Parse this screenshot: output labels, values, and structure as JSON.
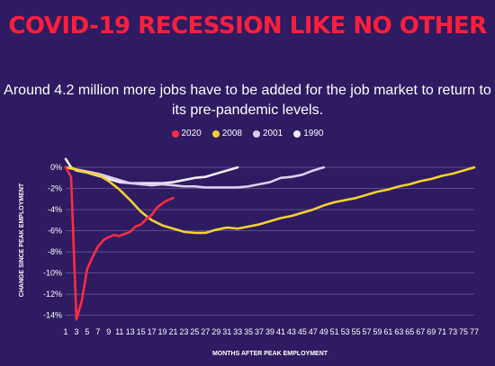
{
  "title": "COVID-19 RECESSION LIKE NO OTHER",
  "subtitle": "Around 4.2 million more jobs have to be added for the job market to return to its pre-pandemic levels.",
  "colors": {
    "background": "#2e1b61",
    "title": "#ff1f3c",
    "grid": "#6a5c99"
  },
  "chart_data": {
    "type": "line",
    "title": "COVID-19 RECESSION LIKE NO OTHER",
    "subtitle": "Around 4.2 million more jobs have to be added for the job market to return to its pre-pandemic levels.",
    "xlabel": "MONTHS AFTER PEAK EMPLOYMENT",
    "ylabel": "CHANGE SINCE PEAK EMPLOYMENT",
    "xlim": [
      1,
      77
    ],
    "ylim": [
      -14.8,
      1.2
    ],
    "x_ticks": [
      1,
      3,
      5,
      7,
      9,
      11,
      13,
      15,
      17,
      19,
      21,
      23,
      25,
      27,
      29,
      31,
      33,
      35,
      37,
      39,
      41,
      43,
      45,
      47,
      49,
      51,
      53,
      55,
      57,
      59,
      61,
      63,
      65,
      67,
      69,
      71,
      73,
      75,
      77
    ],
    "x_tick_labels": [
      "1",
      "3",
      "5",
      "7",
      "9",
      "11",
      "13",
      "15",
      "17",
      "19",
      "21",
      "23",
      "25",
      "27",
      "29",
      "31",
      "33",
      "35",
      "37",
      "39",
      "41",
      "43",
      "45",
      "47",
      "49",
      "51",
      "53",
      "55",
      "57",
      "59",
      "61",
      "63",
      "65",
      "67",
      "69",
      "71",
      "73",
      "75",
      "77"
    ],
    "y_ticks": [
      0,
      -2,
      -4,
      -6,
      -8,
      -10,
      -12,
      -14
    ],
    "y_tick_labels": [
      "0%",
      "-2%",
      "-4%",
      "-6%",
      "-8%",
      "-10%",
      "-12%",
      "-14%"
    ],
    "grid": true,
    "legend_position": "top-center",
    "series": [
      {
        "name": "2020",
        "color": "#ff2a45",
        "points": [
          [
            1,
            0
          ],
          [
            2,
            -0.9
          ],
          [
            3,
            -14.4
          ],
          [
            4,
            -12.6
          ],
          [
            5,
            -9.6
          ],
          [
            6,
            -8.5
          ],
          [
            7,
            -7.5
          ],
          [
            8,
            -6.9
          ],
          [
            9,
            -6.6
          ],
          [
            10,
            -6.4
          ],
          [
            11,
            -6.5
          ],
          [
            12,
            -6.3
          ],
          [
            13,
            -6.1
          ],
          [
            14,
            -5.6
          ],
          [
            15,
            -5.4
          ],
          [
            16,
            -4.9
          ],
          [
            17,
            -4.5
          ],
          [
            18,
            -3.8
          ],
          [
            19,
            -3.4
          ],
          [
            20,
            -3.1
          ],
          [
            21,
            -2.9
          ]
        ]
      },
      {
        "name": "2008",
        "color": "#f5d130",
        "points": [
          [
            1,
            0
          ],
          [
            3,
            -0.2
          ],
          [
            5,
            -0.5
          ],
          [
            7,
            -0.7
          ],
          [
            9,
            -1.3
          ],
          [
            11,
            -2.1
          ],
          [
            13,
            -3.1
          ],
          [
            15,
            -4.2
          ],
          [
            17,
            -5.0
          ],
          [
            19,
            -5.5
          ],
          [
            21,
            -5.8
          ],
          [
            23,
            -6.1
          ],
          [
            25,
            -6.2
          ],
          [
            27,
            -6.2
          ],
          [
            29,
            -5.9
          ],
          [
            31,
            -5.7
          ],
          [
            33,
            -5.8
          ],
          [
            35,
            -5.6
          ],
          [
            37,
            -5.4
          ],
          [
            39,
            -5.1
          ],
          [
            41,
            -4.8
          ],
          [
            43,
            -4.6
          ],
          [
            45,
            -4.3
          ],
          [
            47,
            -4.0
          ],
          [
            49,
            -3.6
          ],
          [
            51,
            -3.3
          ],
          [
            53,
            -3.1
          ],
          [
            55,
            -2.9
          ],
          [
            57,
            -2.6
          ],
          [
            59,
            -2.3
          ],
          [
            61,
            -2.1
          ],
          [
            63,
            -1.8
          ],
          [
            65,
            -1.6
          ],
          [
            67,
            -1.3
          ],
          [
            69,
            -1.1
          ],
          [
            71,
            -0.8
          ],
          [
            73,
            -0.6
          ],
          [
            75,
            -0.3
          ],
          [
            77,
            0
          ]
        ]
      },
      {
        "name": "2001",
        "color": "#d9cdee",
        "points": [
          [
            1,
            0
          ],
          [
            3,
            -0.2
          ],
          [
            5,
            -0.4
          ],
          [
            7,
            -0.6
          ],
          [
            9,
            -0.9
          ],
          [
            11,
            -1.2
          ],
          [
            13,
            -1.5
          ],
          [
            15,
            -1.6
          ],
          [
            17,
            -1.7
          ],
          [
            19,
            -1.6
          ],
          [
            21,
            -1.7
          ],
          [
            23,
            -1.8
          ],
          [
            25,
            -1.8
          ],
          [
            27,
            -1.9
          ],
          [
            29,
            -1.9
          ],
          [
            31,
            -1.9
          ],
          [
            33,
            -1.9
          ],
          [
            35,
            -1.8
          ],
          [
            37,
            -1.6
          ],
          [
            39,
            -1.4
          ],
          [
            41,
            -1.0
          ],
          [
            43,
            -0.9
          ],
          [
            45,
            -0.7
          ],
          [
            47,
            -0.3
          ],
          [
            49,
            0
          ]
        ]
      },
      {
        "name": "1990",
        "color": "#efeaf9",
        "points": [
          [
            1,
            0.8
          ],
          [
            2,
            0
          ],
          [
            3,
            -0.3
          ],
          [
            5,
            -0.5
          ],
          [
            7,
            -0.8
          ],
          [
            9,
            -1.1
          ],
          [
            11,
            -1.4
          ],
          [
            13,
            -1.5
          ],
          [
            15,
            -1.5
          ],
          [
            17,
            -1.5
          ],
          [
            19,
            -1.5
          ],
          [
            21,
            -1.4
          ],
          [
            23,
            -1.2
          ],
          [
            25,
            -1.0
          ],
          [
            27,
            -0.9
          ],
          [
            29,
            -0.6
          ],
          [
            31,
            -0.3
          ],
          [
            33,
            0
          ]
        ]
      }
    ]
  }
}
